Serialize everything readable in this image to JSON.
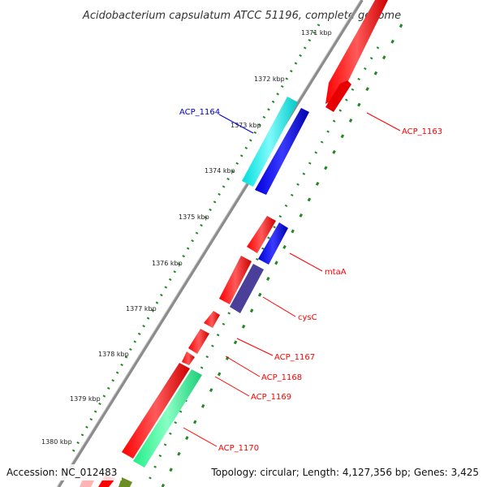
{
  "title": "Acidobacterium capsulatum ATCC 51196, complete genome",
  "accession": "Accession: NC_012483",
  "topology": "Topology: circular; Length: 4,127,356 bp; Genes: 3,425",
  "ticks": [
    "1371 kbp",
    "1372 kbp",
    "1373 kbp",
    "1374 kbp",
    "1375 kbp",
    "1376 kbp",
    "1377 kbp",
    "1378 kbp",
    "1379 kbp",
    "1380 kbp"
  ],
  "genes": [
    {
      "name": "ACP_1163",
      "color": "#ff0000"
    },
    {
      "name": "ACP_1164",
      "color": "#0000cc"
    },
    {
      "name": "mtaA",
      "color": "#ff0000"
    },
    {
      "name": "cysC",
      "color": "#ff0000"
    },
    {
      "name": "ACP_1167",
      "color": "#ff0000"
    },
    {
      "name": "ACP_1168",
      "color": "#ff0000"
    },
    {
      "name": "ACP_1169",
      "color": "#ff0000"
    },
    {
      "name": "ACP_1170",
      "color": "#ff0000"
    }
  ],
  "colors": {
    "forward_cds": "#ff0000",
    "reverse_cds": "#0000ff",
    "cyan_feature": "#00ffff",
    "slate_feature": "#4a3f99",
    "green_feature": "#33ff99",
    "olive_feature": "#6b8e23",
    "backbone": "#888888",
    "gc_ticks": "#228822"
  }
}
